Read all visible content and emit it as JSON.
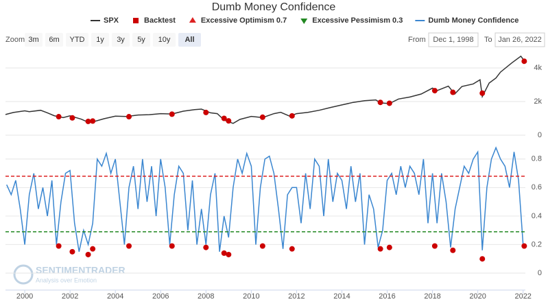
{
  "ui": {
    "zoom_label": "Zoom",
    "zoom_buttons": [
      "3m",
      "6m",
      "YTD",
      "1y",
      "3y",
      "5y",
      "10y",
      "All"
    ],
    "from_label": "From",
    "from_date": "Dec 1, 1998",
    "to_label": "To",
    "to_date": "Jan 26, 2022",
    "watermark": "SENTIMENTRADER",
    "watermark_tagline": "Analysis over Emotion"
  },
  "chart_data": {
    "type": "line",
    "title": "Dumb Money Confidence",
    "xlim": [
      1999.15,
      2022.1
    ],
    "xticks": [
      2000,
      2002,
      2004,
      2006,
      2008,
      2010,
      2012,
      2014,
      2016,
      2018,
      2020,
      2022
    ],
    "ylim": [
      0,
      4800
    ],
    "yticks": [
      0,
      {
        "value": 2000,
        "label": "2k"
      },
      {
        "value": 4000,
        "label": "4k"
      }
    ],
    "y2lim": [
      -0.1,
      0.9
    ],
    "y2ticks": [
      0,
      0.2,
      0.4,
      0.6,
      0.8
    ],
    "series": [
      {
        "name": "SPX",
        "color": "#333333",
        "x": [
          1999.15,
          1999.5,
          2000.0,
          2000.2,
          2000.7,
          2001.0,
          2001.3,
          2001.7,
          2002.0,
          2002.5,
          2002.75,
          2003.1,
          2003.5,
          2004.0,
          2004.5,
          2005.0,
          2005.5,
          2006.0,
          2006.5,
          2007.0,
          2007.5,
          2007.8,
          2008.2,
          2008.5,
          2008.8,
          2009.2,
          2009.5,
          2010.0,
          2010.5,
          2011.0,
          2011.3,
          2011.7,
          2012.0,
          2012.5,
          2013.0,
          2013.5,
          2014.0,
          2014.5,
          2015.0,
          2015.5,
          2015.7,
          2016.1,
          2016.5,
          2017.0,
          2017.5,
          2018.0,
          2018.2,
          2018.7,
          2018.98,
          2019.3,
          2019.8,
          2020.1,
          2020.2,
          2020.5,
          2020.8,
          2021.0,
          2021.5,
          2021.9,
          2022.07
        ],
        "values": [
          1230,
          1350,
          1450,
          1400,
          1480,
          1330,
          1160,
          1050,
          1150,
          950,
          800,
          830,
          980,
          1130,
          1110,
          1200,
          1220,
          1280,
          1260,
          1430,
          1520,
          1550,
          1330,
          1280,
          900,
          700,
          940,
          1120,
          1050,
          1280,
          1360,
          1130,
          1280,
          1360,
          1480,
          1650,
          1800,
          1950,
          2050,
          2100,
          1920,
          1880,
          2150,
          2270,
          2450,
          2800,
          2650,
          2920,
          2450,
          2900,
          3050,
          3300,
          2300,
          3100,
          3400,
          3750,
          4300,
          4700,
          4400
        ]
      },
      {
        "name": "Backtest",
        "color": "#cc0000",
        "axis": "y2",
        "x": [
          2001.5,
          2002.1,
          2002.8,
          2003.0,
          2004.6,
          2006.5,
          2008.0,
          2008.8,
          2009.0,
          2010.5,
          2011.8,
          2015.7,
          2016.1,
          2018.1,
          2018.9,
          2020.2,
          2022.05
        ],
        "values": [
          0.19,
          0.15,
          0.13,
          0.17,
          0.19,
          0.19,
          0.18,
          0.14,
          0.13,
          0.19,
          0.17,
          0.17,
          0.18,
          0.19,
          0.16,
          0.1,
          0.19
        ],
        "spx_values": [
          1100,
          1030,
          820,
          840,
          1100,
          1250,
          1350,
          1000,
          850,
          1070,
          1150,
          1950,
          1900,
          2650,
          2550,
          2500,
          4400
        ]
      },
      {
        "name": "Excessive Optimism 0.7",
        "color": "#dd2222",
        "axis": "y2",
        "value": 0.68
      },
      {
        "name": "Excessive Pessimism 0.3",
        "color": "#228822",
        "axis": "y2",
        "value": 0.29
      },
      {
        "name": "Dumb Money Confidence",
        "color": "#3a86d0",
        "axis": "y2",
        "x": [
          1999.2,
          1999.4,
          1999.6,
          1999.8,
          2000.0,
          2000.2,
          2000.4,
          2000.6,
          2000.8,
          2001.0,
          2001.2,
          2001.4,
          2001.6,
          2001.8,
          2002.0,
          2002.2,
          2002.4,
          2002.6,
          2002.8,
          2003.0,
          2003.2,
          2003.4,
          2003.6,
          2003.8,
          2004.0,
          2004.2,
          2004.4,
          2004.6,
          2004.8,
          2005.0,
          2005.2,
          2005.4,
          2005.6,
          2005.8,
          2006.0,
          2006.2,
          2006.4,
          2006.6,
          2006.8,
          2007.0,
          2007.2,
          2007.4,
          2007.6,
          2007.8,
          2008.0,
          2008.2,
          2008.4,
          2008.6,
          2008.8,
          2009.0,
          2009.2,
          2009.4,
          2009.6,
          2009.8,
          2010.0,
          2010.2,
          2010.4,
          2010.6,
          2010.8,
          2011.0,
          2011.2,
          2011.4,
          2011.6,
          2011.8,
          2012.0,
          2012.2,
          2012.4,
          2012.6,
          2012.8,
          2013.0,
          2013.2,
          2013.4,
          2013.6,
          2013.8,
          2014.0,
          2014.2,
          2014.4,
          2014.6,
          2014.8,
          2015.0,
          2015.2,
          2015.4,
          2015.6,
          2015.8,
          2016.0,
          2016.2,
          2016.4,
          2016.6,
          2016.8,
          2017.0,
          2017.2,
          2017.4,
          2017.6,
          2017.8,
          2018.0,
          2018.2,
          2018.4,
          2018.6,
          2018.8,
          2019.0,
          2019.2,
          2019.4,
          2019.6,
          2019.8,
          2020.0,
          2020.2,
          2020.4,
          2020.6,
          2020.8,
          2021.0,
          2021.2,
          2021.4,
          2021.6,
          2021.8,
          2022.0
        ],
        "values": [
          0.62,
          0.55,
          0.65,
          0.45,
          0.2,
          0.55,
          0.7,
          0.45,
          0.6,
          0.4,
          0.65,
          0.2,
          0.5,
          0.7,
          0.72,
          0.35,
          0.15,
          0.3,
          0.2,
          0.35,
          0.8,
          0.75,
          0.84,
          0.7,
          0.8,
          0.5,
          0.2,
          0.6,
          0.75,
          0.45,
          0.8,
          0.5,
          0.75,
          0.4,
          0.8,
          0.6,
          0.2,
          0.55,
          0.75,
          0.7,
          0.3,
          0.65,
          0.2,
          0.45,
          0.2,
          0.55,
          0.7,
          0.15,
          0.4,
          0.25,
          0.6,
          0.8,
          0.7,
          0.84,
          0.75,
          0.2,
          0.6,
          0.8,
          0.82,
          0.7,
          0.45,
          0.17,
          0.55,
          0.6,
          0.6,
          0.35,
          0.7,
          0.45,
          0.8,
          0.75,
          0.4,
          0.8,
          0.5,
          0.7,
          0.65,
          0.45,
          0.75,
          0.5,
          0.7,
          0.2,
          0.55,
          0.45,
          0.18,
          0.3,
          0.65,
          0.7,
          0.55,
          0.75,
          0.6,
          0.75,
          0.7,
          0.55,
          0.8,
          0.35,
          0.7,
          0.35,
          0.7,
          0.5,
          0.18,
          0.45,
          0.6,
          0.75,
          0.7,
          0.8,
          0.85,
          0.16,
          0.6,
          0.8,
          0.88,
          0.8,
          0.75,
          0.6,
          0.85,
          0.65,
          0.2
        ]
      }
    ]
  }
}
